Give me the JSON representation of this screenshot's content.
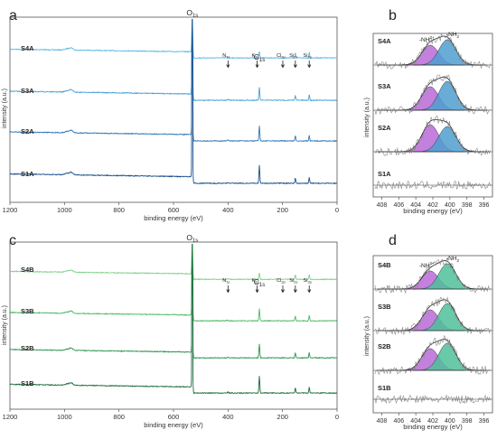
{
  "chart_data": [
    {
      "id": "a",
      "type": "line",
      "xlabel": "binding energy (eV)",
      "ylabel": "intensity (a.u.)",
      "xlim": [
        1200,
        0
      ],
      "xticks": [
        1200,
        1000,
        800,
        600,
        400,
        200,
        0
      ],
      "series": [
        {
          "name": "S4A",
          "color": "#5bb8e6"
        },
        {
          "name": "S3A",
          "color": "#4a9fd6"
        },
        {
          "name": "S2A",
          "color": "#2f77b8"
        },
        {
          "name": "S1A",
          "color": "#1a4f8c"
        }
      ],
      "annotations": [
        {
          "label": "O",
          "sub": "1s",
          "x": 531,
          "size": "big"
        },
        {
          "label": "C",
          "sub": "1s",
          "x": 285,
          "size": "big"
        },
        {
          "label": "N",
          "sub": "1s",
          "x": 400,
          "size": "small",
          "arrow": true
        },
        {
          "label": "K",
          "sub": "2p",
          "x": 293,
          "size": "small",
          "arrow": true
        },
        {
          "label": "Cl",
          "sub": "2p",
          "x": 199,
          "size": "small",
          "arrow": true
        },
        {
          "label": "Si",
          "sub": "2s",
          "x": 153,
          "size": "small",
          "arrow": true
        },
        {
          "label": "Si",
          "sub": "2p",
          "x": 102,
          "size": "small",
          "arrow": true
        }
      ]
    },
    {
      "id": "b",
      "type": "line",
      "xlabel": "binding energy (eV)",
      "ylabel": "intensity (a.u.)",
      "xlim": [
        409,
        395
      ],
      "xticks": [
        408,
        406,
        404,
        402,
        400,
        398,
        396
      ],
      "series": [
        {
          "name": "S4A",
          "fit": true
        },
        {
          "name": "S3A",
          "fit": true
        },
        {
          "name": "S2A",
          "fit": true
        },
        {
          "name": "S1A",
          "fit": false
        }
      ],
      "components": [
        {
          "label": "-NH",
          "sup": "3+",
          "center": 402.3,
          "color": "#b86ad6"
        },
        {
          "label": "-NH",
          "sub": "2",
          "center": 400.3,
          "color": "#4f9fd0"
        }
      ]
    },
    {
      "id": "c",
      "type": "line",
      "xlabel": "binding energy (eV)",
      "ylabel": "intensity (a.u.)",
      "xlim": [
        1200,
        0
      ],
      "xticks": [
        1200,
        1000,
        800,
        600,
        400,
        200,
        0
      ],
      "series": [
        {
          "name": "S4B",
          "color": "#7fd18a"
        },
        {
          "name": "S3B",
          "color": "#4fb866"
        },
        {
          "name": "S2B",
          "color": "#2e9450"
        },
        {
          "name": "S1B",
          "color": "#1b6b3a"
        }
      ],
      "annotations": [
        {
          "label": "O",
          "sub": "1s",
          "x": 531,
          "size": "big"
        },
        {
          "label": "C",
          "sub": "1s",
          "x": 285,
          "size": "big"
        },
        {
          "label": "N",
          "sub": "1s",
          "x": 400,
          "size": "small",
          "arrow": true
        },
        {
          "label": "K",
          "sub": "2p",
          "x": 293,
          "size": "small",
          "arrow": true
        },
        {
          "label": "Cl",
          "sub": "2p",
          "x": 199,
          "size": "small",
          "arrow": true
        },
        {
          "label": "Si",
          "sub": "2s",
          "x": 153,
          "size": "small",
          "arrow": true
        },
        {
          "label": "Si",
          "sub": "2p",
          "x": 102,
          "size": "small",
          "arrow": true
        }
      ]
    },
    {
      "id": "d",
      "type": "line",
      "xlabel": "binding energy (eV)",
      "ylabel": "intensity (a.u.)",
      "xlim": [
        409,
        395
      ],
      "xticks": [
        408,
        406,
        404,
        402,
        400,
        398,
        396
      ],
      "series": [
        {
          "name": "S4B",
          "fit": true
        },
        {
          "name": "S3B",
          "fit": true
        },
        {
          "name": "S2B",
          "fit": true
        },
        {
          "name": "S1B",
          "fit": false
        }
      ],
      "components": [
        {
          "label": "-NH",
          "sup": "3+",
          "center": 402.3,
          "color": "#b86ad6"
        },
        {
          "label": "-NH",
          "sub": "2",
          "center": 400.3,
          "color": "#4fbf9a"
        }
      ]
    }
  ]
}
